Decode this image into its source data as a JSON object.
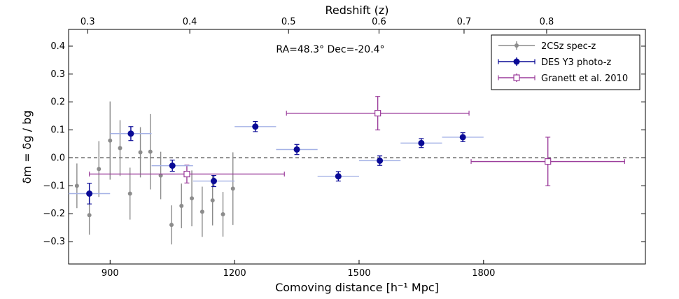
{
  "chart_data": {
    "type": "scatter",
    "title": "",
    "xlabel": "Comoving distance [h⁻¹ Mpc]",
    "ylabel": "δm = δg / bg",
    "top_xlabel": "Redshift (z)",
    "xlim": [
      800,
      2190
    ],
    "ylim": [
      -0.38,
      0.46
    ],
    "x_ticks": [
      900,
      1200,
      1500,
      1800
    ],
    "y_ticks": [
      -0.3,
      -0.2,
      -0.1,
      0.0,
      0.1,
      0.2,
      0.3,
      0.4
    ],
    "top_ticks": [
      {
        "label": "0.3",
        "x": 846
      },
      {
        "label": "0.4",
        "x": 1092
      },
      {
        "label": "0.5",
        "x": 1330
      },
      {
        "label": "0.6",
        "x": 1548
      },
      {
        "label": "0.7",
        "x": 1753
      },
      {
        "label": "0.8",
        "x": 1952
      }
    ],
    "annotation": "RA=48.3° Dec=-20.4°",
    "reference_line": 0.0,
    "legend_position": "top-right",
    "series": [
      {
        "name": "2CSz spec-z",
        "color": "#8c8c8c",
        "marker": "dot",
        "points": [
          {
            "x": 820,
            "y": -0.1,
            "yerr": 0.08
          },
          {
            "x": 850,
            "y": -0.205,
            "yerr": 0.07
          },
          {
            "x": 873,
            "y": -0.04,
            "yerr": 0.1
          },
          {
            "x": 900,
            "y": 0.062,
            "yerr": 0.14
          },
          {
            "x": 924,
            "y": 0.035,
            "yerr": 0.1
          },
          {
            "x": 948,
            "y": -0.128,
            "yerr": 0.093
          },
          {
            "x": 973,
            "y": 0.02,
            "yerr": 0.09
          },
          {
            "x": 997,
            "y": 0.022,
            "yerr": 0.135
          },
          {
            "x": 1022,
            "y": -0.063,
            "yerr": 0.085
          },
          {
            "x": 1048,
            "y": -0.24,
            "yerr": 0.07
          },
          {
            "x": 1072,
            "y": -0.172,
            "yerr": 0.08
          },
          {
            "x": 1097,
            "y": -0.145,
            "yerr": 0.1
          },
          {
            "x": 1122,
            "y": -0.193,
            "yerr": 0.09
          },
          {
            "x": 1147,
            "y": -0.152,
            "yerr": 0.09
          },
          {
            "x": 1172,
            "y": -0.202,
            "yerr": 0.08
          },
          {
            "x": 1196,
            "y": -0.11,
            "yerr": 0.13
          }
        ]
      },
      {
        "name": "DES Y3 photo-z",
        "color": "#0a0a96",
        "marker": "circle",
        "xerr_color": "#a5b2e6",
        "points": [
          {
            "x": 850,
            "y": -0.128,
            "xerr": 50,
            "yerr": 0.037
          },
          {
            "x": 950,
            "y": 0.087,
            "xerr": 50,
            "yerr": 0.025
          },
          {
            "x": 1050,
            "y": -0.028,
            "xerr": 50,
            "yerr": 0.02
          },
          {
            "x": 1150,
            "y": -0.083,
            "xerr": 50,
            "yerr": 0.02
          },
          {
            "x": 1250,
            "y": 0.112,
            "xerr": 50,
            "yerr": 0.018
          },
          {
            "x": 1350,
            "y": 0.03,
            "xerr": 50,
            "yerr": 0.018
          },
          {
            "x": 1450,
            "y": -0.066,
            "xerr": 50,
            "yerr": 0.017
          },
          {
            "x": 1550,
            "y": -0.01,
            "xerr": 50,
            "yerr": 0.017
          },
          {
            "x": 1650,
            "y": 0.053,
            "xerr": 50,
            "yerr": 0.016
          },
          {
            "x": 1750,
            "y": 0.074,
            "xerr": 50,
            "yerr": 0.016
          }
        ]
      },
      {
        "name": "Granett et al. 2010",
        "color": "#9b3d9b",
        "marker": "open-square",
        "points": [
          {
            "x": 1085,
            "y": -0.058,
            "xerr": 235,
            "yerr": 0.032
          },
          {
            "x": 1545,
            "y": 0.16,
            "xerr": 220,
            "yerr": 0.06
          },
          {
            "x": 1955,
            "y": -0.013,
            "xerr": 185,
            "yerr": 0.087
          }
        ]
      }
    ]
  }
}
